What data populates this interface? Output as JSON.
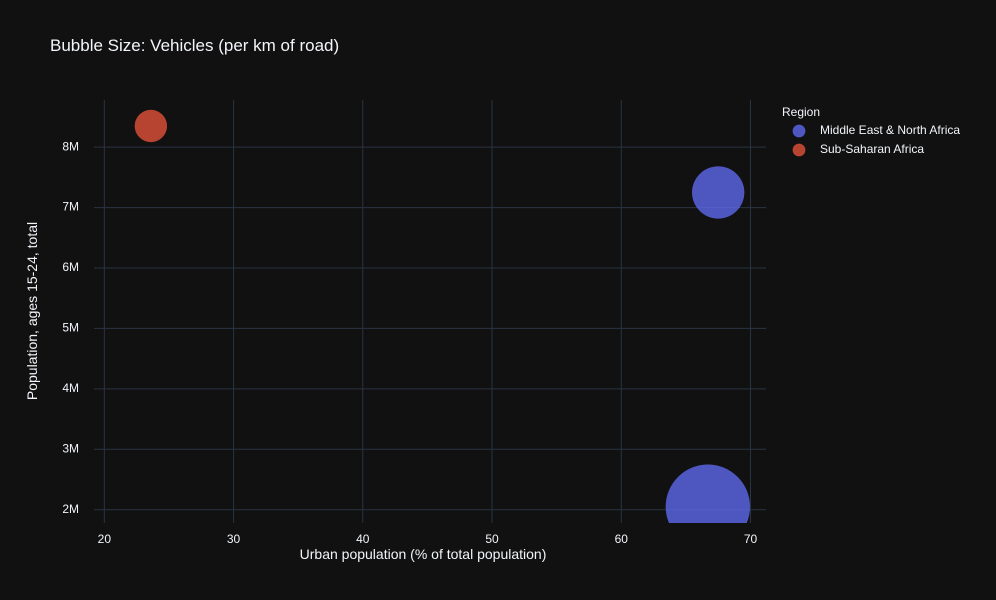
{
  "chart_data": {
    "type": "scatter",
    "title": "Bubble Size: Vehicles (per km of road)",
    "xlabel": "Urban population (% of total population)",
    "ylabel": "Population, ages 15-24, total",
    "xlim": [
      19.2,
      71.2
    ],
    "ylim": [
      1780000,
      8780000
    ],
    "xticks": [
      20,
      30,
      40,
      50,
      60,
      70
    ],
    "xtick_labels": [
      "20",
      "30",
      "40",
      "50",
      "60",
      "70"
    ],
    "yticks": [
      2000000,
      3000000,
      4000000,
      5000000,
      6000000,
      7000000,
      8000000
    ],
    "ytick_labels": [
      "2M",
      "3M",
      "4M",
      "5M",
      "6M",
      "7M",
      "8M"
    ],
    "grid": true,
    "legend": {
      "title": "Region",
      "position": "top-right"
    },
    "series": [
      {
        "name": "Middle East & North Africa",
        "color": "#636efa",
        "points": [
          {
            "x": 67.5,
            "y": 7250000,
            "size": 26
          },
          {
            "x": 66.7,
            "y": 2050000,
            "size": 42
          }
        ]
      },
      {
        "name": "Sub-Saharan Africa",
        "color": "#ef553b",
        "points": [
          {
            "x": 23.6,
            "y": 8350000,
            "size": 16
          }
        ]
      }
    ]
  }
}
